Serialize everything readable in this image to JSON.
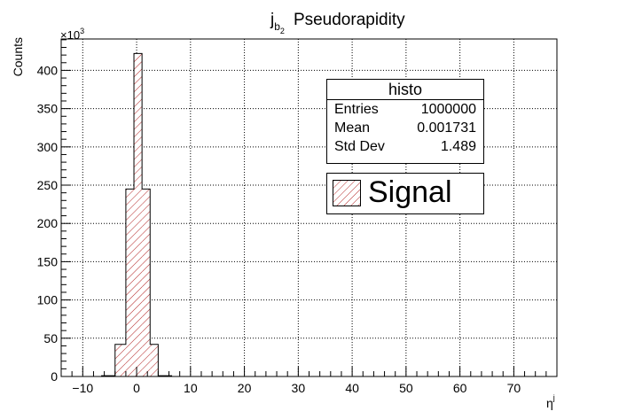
{
  "chart_data": {
    "type": "bar",
    "title_main": "j",
    "title_sub1": "b",
    "title_sub2": "2",
    "title_rest": "Pseudorapidity",
    "xlabel_main": "η",
    "xlabel_sup": "j",
    "ylabel": "Counts",
    "y_multiplier_base": "×10",
    "y_multiplier_exp": "3",
    "xlim": [
      -14,
      78
    ],
    "ylim": [
      0,
      441000
    ],
    "x_ticks": [
      -10,
      0,
      10,
      20,
      30,
      40,
      50,
      60,
      70
    ],
    "x_tick_labels": [
      "−10",
      "0",
      "10",
      "20",
      "30",
      "40",
      "50",
      "60",
      "70"
    ],
    "y_ticks": [
      0,
      50000,
      100000,
      150000,
      200000,
      250000,
      300000,
      350000,
      400000
    ],
    "y_tick_labels": [
      "0",
      "50",
      "100",
      "150",
      "200",
      "250",
      "300",
      "350",
      "400"
    ],
    "grid": true,
    "bins": [
      {
        "low": -6.5,
        "high": -4.0,
        "value": 1000
      },
      {
        "low": -4.0,
        "high": -2.0,
        "value": 42000
      },
      {
        "low": -2.0,
        "high": -0.5,
        "value": 245000
      },
      {
        "low": -0.5,
        "high": 1.0,
        "value": 422000
      },
      {
        "low": 1.0,
        "high": 2.5,
        "value": 245000
      },
      {
        "low": 2.5,
        "high": 4.0,
        "value": 42000
      },
      {
        "low": 4.0,
        "high": 6.5,
        "value": 1000
      }
    ],
    "series": [
      {
        "name": "Signal",
        "color": "#c0392b"
      }
    ],
    "hatch_color": "#b22222",
    "stats": {
      "title": "histo",
      "rows": [
        {
          "label": "Entries",
          "value": "1000000"
        },
        {
          "label": "Mean",
          "value": "0.001731"
        },
        {
          "label": "Std Dev",
          "value": "1.489"
        }
      ]
    },
    "legend": {
      "label": "Signal",
      "placement": "top-right"
    }
  }
}
